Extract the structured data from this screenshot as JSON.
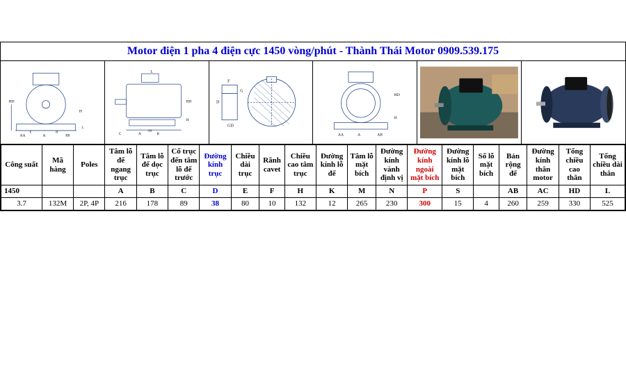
{
  "title": "Motor điện 1 pha 4 điện cực 1450 vòng/phút - Thành Thái Motor 0909.539.175",
  "headers": {
    "top": [
      {
        "t": "Công suất",
        "cls": ""
      },
      {
        "t": "Mã hàng",
        "cls": ""
      },
      {
        "t": "Poles",
        "cls": ""
      },
      {
        "t": "Tâm lỗ đế ngang trục",
        "cls": ""
      },
      {
        "t": "Tâm lỗ đế dọc trục",
        "cls": ""
      },
      {
        "t": "Cổ trục đến tâm lỗ đế trước",
        "cls": ""
      },
      {
        "t": "Đường kính trục",
        "cls": "blue"
      },
      {
        "t": "Chiều dài trục",
        "cls": ""
      },
      {
        "t": "Rãnh cavet",
        "cls": ""
      },
      {
        "t": "Chiều cao tâm trục",
        "cls": ""
      },
      {
        "t": "Đường kính lỗ đế",
        "cls": ""
      },
      {
        "t": "Tâm lỗ mặt bích",
        "cls": ""
      },
      {
        "t": "Đường kính vành định vị",
        "cls": ""
      },
      {
        "t": "Đường kính ngoài mặt bích",
        "cls": "red"
      },
      {
        "t": "Đường kính lỗ mặt bích",
        "cls": ""
      },
      {
        "t": "Số lỗ mặt bích",
        "cls": ""
      },
      {
        "t": "Bản rộng đế",
        "cls": ""
      },
      {
        "t": "Đường kính thân motor",
        "cls": ""
      },
      {
        "t": "Tổng chiều cao thân",
        "cls": ""
      },
      {
        "t": "Tổng chiều dài thân",
        "cls": ""
      }
    ],
    "bot": [
      {
        "t": "1450",
        "cls": ""
      },
      {
        "t": "",
        "cls": ""
      },
      {
        "t": "",
        "cls": ""
      },
      {
        "t": "A",
        "cls": ""
      },
      {
        "t": "B",
        "cls": ""
      },
      {
        "t": "C",
        "cls": ""
      },
      {
        "t": "D",
        "cls": "blue"
      },
      {
        "t": "E",
        "cls": ""
      },
      {
        "t": "F",
        "cls": ""
      },
      {
        "t": "H",
        "cls": ""
      },
      {
        "t": "K",
        "cls": ""
      },
      {
        "t": "M",
        "cls": ""
      },
      {
        "t": "N",
        "cls": ""
      },
      {
        "t": "P",
        "cls": "red"
      },
      {
        "t": "S",
        "cls": ""
      },
      {
        "t": "",
        "cls": ""
      },
      {
        "t": "AB",
        "cls": ""
      },
      {
        "t": "AC",
        "cls": ""
      },
      {
        "t": "HD",
        "cls": ""
      },
      {
        "t": "L",
        "cls": ""
      }
    ]
  },
  "row": [
    {
      "t": "3.7",
      "cls": ""
    },
    {
      "t": "132M",
      "cls": ""
    },
    {
      "t": "2P, 4P",
      "cls": ""
    },
    {
      "t": "216",
      "cls": ""
    },
    {
      "t": "178",
      "cls": ""
    },
    {
      "t": "89",
      "cls": ""
    },
    {
      "t": "38",
      "cls": "blue"
    },
    {
      "t": "80",
      "cls": ""
    },
    {
      "t": "10",
      "cls": ""
    },
    {
      "t": "132",
      "cls": ""
    },
    {
      "t": "12",
      "cls": ""
    },
    {
      "t": "265",
      "cls": ""
    },
    {
      "t": "230",
      "cls": ""
    },
    {
      "t": "300",
      "cls": "red"
    },
    {
      "t": "15",
      "cls": ""
    },
    {
      "t": "4",
      "cls": ""
    },
    {
      "t": "260",
      "cls": ""
    },
    {
      "t": "259",
      "cls": ""
    },
    {
      "t": "330",
      "cls": ""
    },
    {
      "t": "525",
      "cls": ""
    }
  ],
  "diagram_labels": {
    "d1": [
      "A",
      "AA",
      "E",
      "B",
      "BB",
      "L",
      "HD",
      "H"
    ],
    "d2": [
      "A",
      "B",
      "AB",
      "C",
      "L",
      "HD",
      "H"
    ],
    "d3": [
      "D",
      "G",
      "F",
      "GD"
    ],
    "d4": [
      "A",
      "AA",
      "AB",
      "HD",
      "H"
    ]
  },
  "colors": {
    "title": "#0000cc",
    "highlight_blue": "#0000cc",
    "highlight_red": "#cc0000",
    "border": "#000000",
    "photo_teal": "#2b6f6f",
    "photo_navy": "#2a3a5a"
  },
  "widths_pct": [
    6.5,
    5,
    5,
    5,
    5,
    5,
    5,
    4.5,
    4,
    5,
    5,
    4.5,
    5,
    5.5,
    5,
    4,
    4.5,
    5,
    5,
    5.5
  ]
}
